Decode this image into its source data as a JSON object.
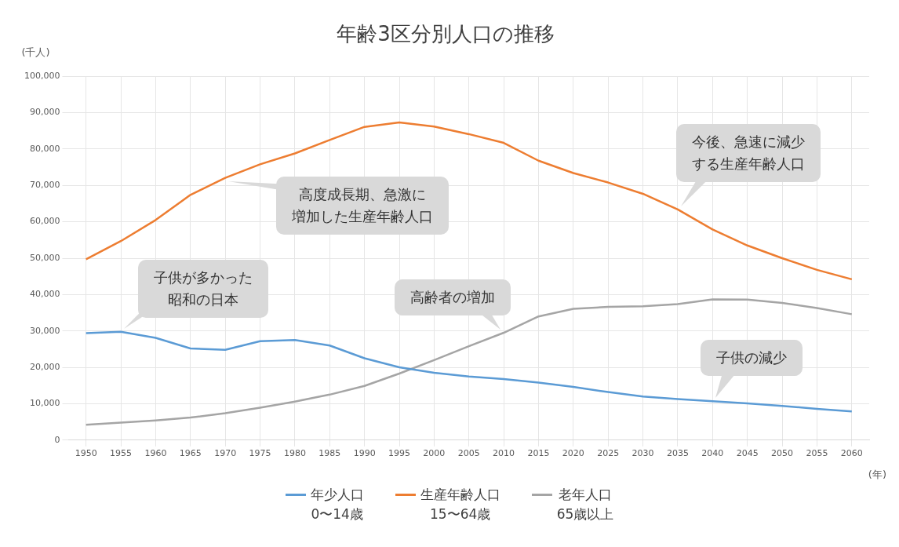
{
  "chart_data": {
    "type": "line",
    "title": "年齢3区分別人口の推移",
    "ylabel": "(千人)",
    "xlabel": "(年)",
    "categories": [
      "1950",
      "1955",
      "1960",
      "1965",
      "1970",
      "1975",
      "1980",
      "1985",
      "1990",
      "1995",
      "2000",
      "2005",
      "2010",
      "2015",
      "2020",
      "2025",
      "2030",
      "2035",
      "2040",
      "2045",
      "2050",
      "2055",
      "2060"
    ],
    "series": [
      {
        "name": "年少人口\n0〜14歳",
        "color": "#5b9bd5",
        "values": [
          29400,
          29800,
          28100,
          25200,
          24800,
          27200,
          27500,
          26000,
          22500,
          20000,
          18500,
          17500,
          16800,
          15800,
          14600,
          13200,
          12000,
          11300,
          10700,
          10100,
          9400,
          8600,
          7900
        ]
      },
      {
        "name": "生産年齢人口\n15〜64歳",
        "color": "#ed7d31",
        "values": [
          49700,
          54700,
          60500,
          67400,
          72100,
          75800,
          78800,
          82500,
          86100,
          87300,
          86200,
          84100,
          81700,
          76800,
          73400,
          70800,
          67700,
          63400,
          57900,
          53500,
          50000,
          46800,
          44200
        ]
      },
      {
        "name": "老年人口\n65歳以上",
        "color": "#a5a5a5",
        "values": [
          4200,
          4800,
          5400,
          6200,
          7400,
          8900,
          10600,
          12500,
          14900,
          18300,
          22000,
          25800,
          29500,
          34000,
          36100,
          36600,
          36800,
          37400,
          38700,
          38600,
          37700,
          36300,
          34600
        ]
      }
    ],
    "ylim": [
      0,
      100000
    ],
    "yticks": [
      {
        "value": 0,
        "label": "0"
      },
      {
        "value": 10000,
        "label": "10,000"
      },
      {
        "value": 20000,
        "label": "20,000"
      },
      {
        "value": 30000,
        "label": "30,000"
      },
      {
        "value": 40000,
        "label": "40,000"
      },
      {
        "value": 50000,
        "label": "50,000"
      },
      {
        "value": 60000,
        "label": "60,000"
      },
      {
        "value": 70000,
        "label": "70,000"
      },
      {
        "value": 80000,
        "label": "80,000"
      },
      {
        "value": 90000,
        "label": "90,000"
      },
      {
        "value": 100000,
        "label": "100,000"
      }
    ],
    "grid": true,
    "legend": "bottom",
    "marker": "none",
    "line_style": "solid",
    "annotations": [
      {
        "text": "子供が多かった昭和の日本",
        "x": "1955",
        "y": 29800
      },
      {
        "text": "高度成長期、急激に増加した生産年齢人口",
        "x": "1970",
        "y": 72100
      },
      {
        "text": "高齢者の増加",
        "x": "2010",
        "y": 29500
      },
      {
        "text": "今後、急速に減少する生産年齢人口",
        "x": "2035",
        "y": 63400
      },
      {
        "text": "子供の減少",
        "x": "2040",
        "y": 10700
      }
    ]
  }
}
